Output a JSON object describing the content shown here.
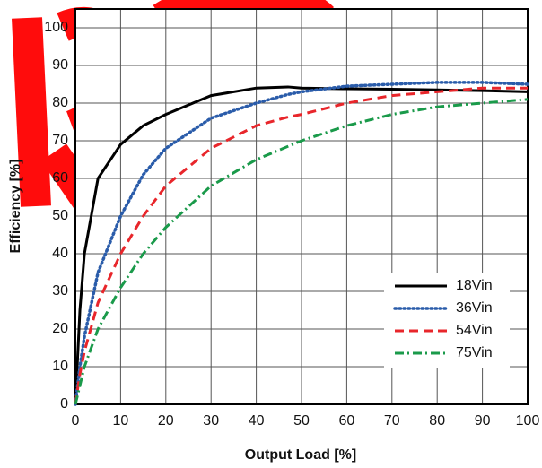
{
  "chart_data": {
    "type": "line",
    "x_label": "Output Load [%]",
    "y_label": "Efficiency [%]",
    "x": [
      0,
      1,
      2,
      5,
      10,
      15,
      20,
      30,
      40,
      47,
      50,
      60,
      70,
      80,
      90,
      100
    ],
    "series": [
      {
        "name": "18Vin",
        "color": "#000000",
        "style": "solid",
        "values": [
          0,
          25,
          40,
          60,
          69,
          74,
          77,
          82,
          84,
          84.3,
          84,
          83.8,
          83.7,
          83.5,
          83.3,
          83
        ]
      },
      {
        "name": "36Vin",
        "color": "#2a5caa",
        "style": "dotted",
        "values": [
          0,
          10,
          18,
          35,
          50,
          61,
          68,
          76,
          80,
          82.3,
          83,
          84.5,
          85,
          85.5,
          85.5,
          85
        ]
      },
      {
        "name": "54Vin",
        "color": "#e8262b",
        "style": "dashed",
        "values": [
          0,
          8,
          14,
          27,
          40,
          50,
          58,
          68,
          74,
          76.3,
          77,
          80,
          82,
          83,
          84,
          84
        ]
      },
      {
        "name": "75Vin",
        "color": "#1a9a4a",
        "style": "dashdot",
        "values": [
          0,
          5,
          10,
          20,
          31,
          40,
          47,
          58,
          65,
          68.5,
          70,
          74,
          77,
          79,
          80,
          81
        ]
      }
    ],
    "xlim": [
      0,
      100
    ],
    "xticks": [
      0,
      10,
      20,
      30,
      40,
      50,
      60,
      70,
      80,
      90,
      100
    ],
    "ylim": [
      0,
      105
    ],
    "yticks": [
      0,
      10,
      20,
      30,
      40,
      50,
      60,
      70,
      80,
      90,
      100
    ],
    "grid": true,
    "legend": "lower-right"
  }
}
